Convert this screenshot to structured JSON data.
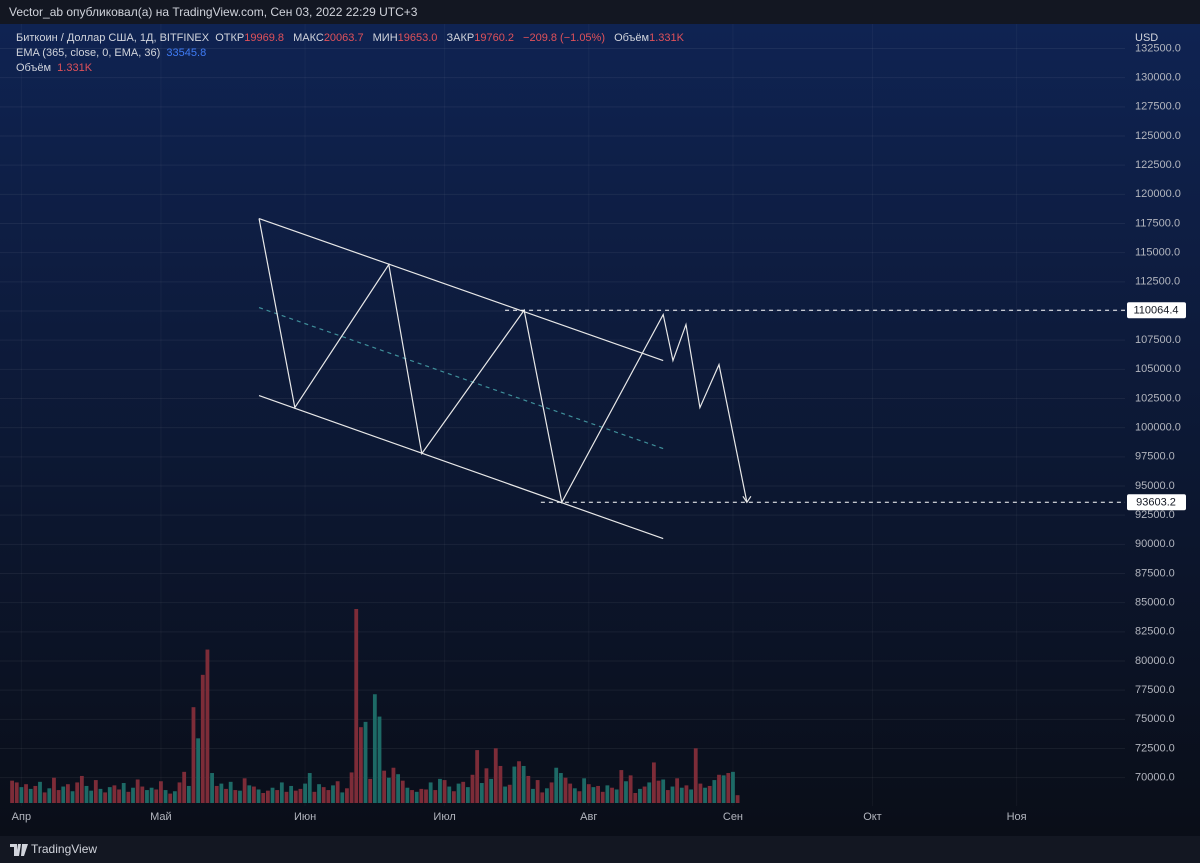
{
  "header": {
    "title": "Vector_ab опубликовал(а) на TradingView.com, Сен 03, 2022 22:29 UTC+3"
  },
  "legend": {
    "symbol": "Биткоин / Доллар США, 1Д, BITFINEX",
    "open_label": "ОТКР",
    "open": "19969.8",
    "high_label": "МАКС",
    "high": "20063.7",
    "low_label": "МИН",
    "low": "19653.0",
    "close_label": "ЗАКР",
    "close": "19760.2",
    "change": "−209.8 (−1.05%)",
    "volume_label": "Объём",
    "volume": "1.331K",
    "ema_label": "EMA (365, close, 0, EMA, 36)",
    "ema": "33545.8",
    "volume_study_label": "Объём",
    "volume_study": "1.331K"
  },
  "footer": {
    "brand": "TradingView"
  },
  "chart_data": {
    "type": "line",
    "y_unit": "USD",
    "grid": true,
    "xlim": [
      -4.6,
      237.3
    ],
    "ylim": [
      65000,
      134600
    ],
    "xticks": [
      {
        "value": 0,
        "label": "Апр"
      },
      {
        "value": 30,
        "label": "Май"
      },
      {
        "value": 61,
        "label": "Июн"
      },
      {
        "value": 91,
        "label": "Июл"
      },
      {
        "value": 122,
        "label": "Авг"
      },
      {
        "value": 153,
        "label": "Сен"
      },
      {
        "value": 183,
        "label": "Окт"
      },
      {
        "value": 214,
        "label": "Ноя"
      }
    ],
    "yticks": [
      {
        "value": 70000,
        "label": "70000.0"
      },
      {
        "value": 72500,
        "label": "72500.0"
      },
      {
        "value": 75000,
        "label": "75000.0"
      },
      {
        "value": 77500,
        "label": "77500.0"
      },
      {
        "value": 80000,
        "label": "80000.0"
      },
      {
        "value": 82500,
        "label": "82500.0"
      },
      {
        "value": 85000,
        "label": "85000.0"
      },
      {
        "value": 87500,
        "label": "87500.0"
      },
      {
        "value": 90000,
        "label": "90000.0"
      },
      {
        "value": 92500,
        "label": "92500.0"
      },
      {
        "value": 95000,
        "label": "95000.0"
      },
      {
        "value": 97500,
        "label": "97500.0"
      },
      {
        "value": 100000,
        "label": "100000.0"
      },
      {
        "value": 102500,
        "label": "102500.0"
      },
      {
        "value": 105000,
        "label": "105000.0"
      },
      {
        "value": 107500,
        "label": "107500.0"
      },
      {
        "value": 110000,
        "label": "110000.0"
      },
      {
        "value": 112500,
        "label": "112500.0"
      },
      {
        "value": 115000,
        "label": "115000.0"
      },
      {
        "value": 117500,
        "label": "117500.0"
      },
      {
        "value": 120000,
        "label": "120000.0"
      },
      {
        "value": 122500,
        "label": "122500.0"
      },
      {
        "value": 125000,
        "label": "125000.0"
      },
      {
        "value": 127500,
        "label": "127500.0"
      },
      {
        "value": 130000,
        "label": "130000.0"
      },
      {
        "value": 132500,
        "label": "132500.0"
      }
    ],
    "drawings": [
      {
        "style": "solid",
        "color": "#e8e8e8",
        "x": [
          51.1,
          138.0
        ],
        "y": [
          117925,
          105751
        ]
      },
      {
        "style": "solid",
        "color": "#e8e8e8",
        "x": [
          51.1,
          138.0
        ],
        "y": [
          102750,
          90490
        ]
      },
      {
        "style": "dashed",
        "color": "#3f8f9a",
        "x": [
          51.1,
          138.0
        ],
        "y": [
          110295,
          98207
        ]
      },
      {
        "style": "solid",
        "color": "#e8e8e8",
        "x": [
          51.1,
          58.8,
          79.0,
          86.1,
          108.1,
          116.2,
          138.0,
          140.1,
          142.9,
          145.9,
          150.0,
          156.0
        ],
        "y": [
          117925,
          101721,
          113981,
          97778,
          110064.4,
          93603.2,
          109695,
          105751,
          108837,
          101721,
          105408,
          93603.2
        ]
      }
    ],
    "levels": [
      {
        "value": 110064.4,
        "x_start": 104.0,
        "color": "#ffffff"
      },
      {
        "value": 93603.2,
        "x_start": 111.7,
        "color": "#ffffff"
      }
    ],
    "volume": {
      "name": "Объём",
      "x_start": -2,
      "values": [
        3.8,
        3.5,
        2.7,
        3.2,
        2.4,
        2.9,
        3.6,
        1.8,
        2.5,
        4.3,
        2.2,
        2.8,
        3.2,
        2.0,
        3.5,
        4.6,
        2.9,
        2.1,
        3.9,
        2.4,
        1.8,
        2.7,
        3.0,
        2.3,
        3.4,
        1.9,
        2.6,
        4.0,
        2.8,
        2.2,
        2.6,
        2.3,
        3.7,
        2.2,
        1.6,
        2.0,
        3.5,
        5.3,
        2.9,
        16.3,
        11.0,
        21.8,
        26.1,
        5.1,
        2.9,
        3.3,
        2.4,
        3.6,
        2.2,
        2.1,
        4.2,
        3.0,
        2.8,
        2.3,
        1.7,
        2.1,
        2.6,
        2.2,
        3.5,
        1.9,
        2.9,
        2.1,
        2.4,
        3.3,
        5.1,
        1.9,
        3.2,
        2.7,
        2.2,
        3.0,
        3.7,
        1.8,
        2.5,
        5.2,
        33.0,
        12.9,
        13.8,
        4.1,
        18.5,
        14.7,
        5.5,
        4.3,
        6.0,
        4.9,
        3.8,
        2.6,
        2.2,
        1.9,
        2.4,
        2.3,
        3.5,
        2.2,
        4.1,
        3.9,
        2.8,
        2.0,
        3.3,
        3.6,
        2.7,
        4.8,
        9.0,
        3.4,
        5.9,
        4.1,
        9.3,
        6.3,
        2.8,
        3.1,
        6.2,
        7.1,
        6.3,
        4.6,
        2.4,
        3.9,
        1.8,
        2.5,
        3.5,
        6.0,
        5.1,
        4.3,
        3.3,
        2.5,
        2.0,
        4.2,
        3.2,
        2.7,
        2.9,
        1.9,
        3.0,
        2.6,
        2.3,
        5.6,
        3.7,
        4.7,
        1.7,
        2.4,
        2.8,
        3.5,
        6.9,
        3.8,
        4.0,
        2.2,
        2.8,
        4.2,
        2.6,
        3.0,
        2.3,
        9.3,
        3.3,
        2.6,
        2.9,
        3.9,
        4.8,
        4.7,
        5.1,
        5.3,
        1.331
      ],
      "colors": [
        "#7d2c38",
        "#7d2c38",
        "#1d6a66",
        "#7d2c38",
        "#1d6a66",
        "#7d2c38",
        "#1d6a66",
        "#7d2c38",
        "#1d6a66",
        "#7d2c38",
        "#7d2c38",
        "#1d6a66",
        "#7d2c38",
        "#1d6a66",
        "#7d2c38",
        "#7d2c38",
        "#1d6a66",
        "#1d6a66",
        "#7d2c38",
        "#1d6a66",
        "#7d2c38",
        "#1d6a66",
        "#7d2c38",
        "#7d2c38",
        "#1d6a66",
        "#7d2c38",
        "#1d6a66",
        "#7d2c38",
        "#7d2c38",
        "#1d6a66",
        "#1d6a66",
        "#7d2c38",
        "#7d2c38",
        "#1d6a66",
        "#7d2c38",
        "#1d6a66",
        "#7d2c38",
        "#7d2c38",
        "#1d6a66",
        "#7d2c38",
        "#1d6a66",
        "#7d2c38",
        "#7d2c38",
        "#1d6a66",
        "#7d2c38",
        "#1d6a66",
        "#7d2c38",
        "#1d6a66",
        "#7d2c38",
        "#1d6a66",
        "#7d2c38",
        "#1d6a66",
        "#7d2c38",
        "#1d6a66",
        "#7d2c38",
        "#7d2c38",
        "#1d6a66",
        "#7d2c38",
        "#1d6a66",
        "#7d2c38",
        "#1d6a66",
        "#7d2c38",
        "#7d2c38",
        "#1d6a66",
        "#1d6a66",
        "#7d2c38",
        "#1d6a66",
        "#7d2c38",
        "#7d2c38",
        "#1d6a66",
        "#7d2c38",
        "#1d6a66",
        "#7d2c38",
        "#7d2c38",
        "#7d2c38",
        "#7d2c38",
        "#1d6a66",
        "#7d2c38",
        "#1d6a66",
        "#1d6a66",
        "#7d2c38",
        "#1d6a66",
        "#7d2c38",
        "#1d6a66",
        "#7d2c38",
        "#1d6a66",
        "#7d2c38",
        "#1d6a66",
        "#7d2c38",
        "#7d2c38",
        "#1d6a66",
        "#7d2c38",
        "#1d6a66",
        "#7d2c38",
        "#1d6a66",
        "#7d2c38",
        "#1d6a66",
        "#7d2c38",
        "#1d6a66",
        "#7d2c38",
        "#7d2c38",
        "#1d6a66",
        "#7d2c38",
        "#1d6a66",
        "#7d2c38",
        "#7d2c38",
        "#1d6a66",
        "#7d2c38",
        "#1d6a66",
        "#7d2c38",
        "#1d6a66",
        "#7d2c38",
        "#1d6a66",
        "#7d2c38",
        "#7d2c38",
        "#1d6a66",
        "#7d2c38",
        "#1d6a66",
        "#1d6a66",
        "#7d2c38",
        "#7d2c38",
        "#1d6a66",
        "#7d2c38",
        "#1d6a66",
        "#7d2c38",
        "#1d6a66",
        "#7d2c38",
        "#7d2c38",
        "#1d6a66",
        "#7d2c38",
        "#1d6a66",
        "#7d2c38",
        "#1d6a66",
        "#7d2c38",
        "#7d2c38",
        "#1d6a66",
        "#7d2c38",
        "#1d6a66",
        "#7d2c38",
        "#7d2c38",
        "#1d6a66",
        "#7d2c38",
        "#1d6a66",
        "#7d2c38",
        "#1d6a66",
        "#7d2c38",
        "#1d6a66",
        "#7d2c38",
        "#7d2c38",
        "#1d6a66",
        "#7d2c38",
        "#1d6a66",
        "#7d2c38",
        "#1d6a66",
        "#7d2c38",
        "#1d6a66",
        "#7d2c38"
      ]
    }
  }
}
